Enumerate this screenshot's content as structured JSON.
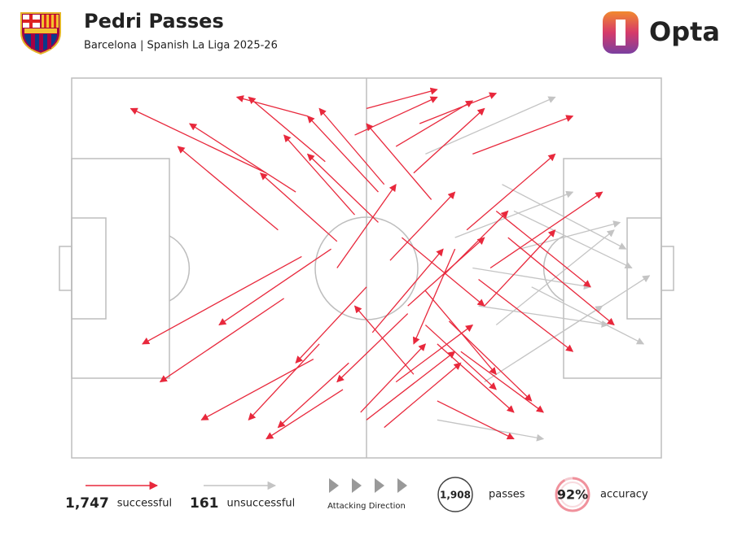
{
  "header": {
    "title": "Pedri Passes",
    "subtitle": "Barcelona | Spanish La Liga 2025-26",
    "brand": "Opta"
  },
  "chart_data": {
    "type": "passmap",
    "xlim": [
      0,
      100
    ],
    "ylim": [
      0,
      100
    ],
    "series": [
      {
        "name": "successful",
        "color": "#e8283c",
        "count": {
          "value": 1747,
          "label": "1,747"
        },
        "x": [
          45,
          52,
          60,
          38,
          55,
          48,
          65,
          70,
          42,
          58,
          50,
          62,
          35,
          68,
          54,
          47,
          72,
          40,
          57,
          63,
          49,
          53,
          66,
          44,
          59,
          51,
          36,
          61,
          56,
          46,
          71,
          43,
          64,
          50,
          58,
          39,
          67,
          53,
          48,
          60,
          55,
          41,
          69,
          52,
          62,
          45,
          57,
          33,
          74,
          50
        ],
        "y": [
          50,
          62,
          35,
          70,
          20,
          85,
          55,
          40,
          30,
          75,
          45,
          15,
          60,
          80,
          52,
          25,
          65,
          90,
          38,
          48,
          12,
          72,
          28,
          55,
          88,
          33,
          42,
          68,
          58,
          18,
          50,
          78,
          36,
          92,
          22,
          53,
          60,
          8,
          64,
          44,
          82,
          26,
          47,
          70,
          30,
          57,
          40,
          75,
          58,
          10
        ],
        "end_x": [
          55,
          40,
          72,
          20,
          68,
          62,
          58,
          82,
          30,
          70,
          38,
          75,
          18,
          85,
          65,
          35,
          88,
          28,
          45,
          74,
          60,
          42,
          80,
          25,
          72,
          63,
          15,
          50,
          70,
          33,
          90,
          30,
          78,
          62,
          48,
          12,
          82,
          66,
          36,
          72,
          68,
          22,
          85,
          40,
          75,
          32,
          70,
          10,
          92,
          65
        ],
        "end_y": [
          72,
          80,
          18,
          88,
          35,
          95,
          30,
          60,
          10,
          92,
          25,
          5,
          82,
          90,
          70,
          8,
          45,
          95,
          20,
          65,
          30,
          92,
          12,
          35,
          96,
          55,
          20,
          88,
          40,
          5,
          70,
          95,
          15,
          97,
          40,
          30,
          80,
          25,
          85,
          22,
          94,
          10,
          28,
          90,
          12,
          75,
          58,
          92,
          35,
          28
        ]
      },
      {
        "name": "unsuccessful",
        "color": "#c4c4c4",
        "count": {
          "value": 161,
          "label": "161"
        },
        "x": [
          68,
          72,
          75,
          60,
          70,
          78,
          65,
          73,
          80,
          62,
          76,
          69
        ],
        "y": [
          50,
          35,
          65,
          80,
          20,
          45,
          58,
          72,
          30,
          10,
          55,
          40
        ],
        "end_x": [
          88,
          92,
          95,
          82,
          90,
          97,
          85,
          94,
          98,
          80,
          93,
          91
        ],
        "end_y": [
          45,
          60,
          50,
          95,
          40,
          30,
          70,
          55,
          48,
          5,
          62,
          35
        ]
      }
    ],
    "direction_label": "Attacking Direction",
    "total": {
      "value": 1908,
      "label": "1,908"
    },
    "total_label": "passes",
    "accuracy": {
      "value": 92,
      "label": "92%"
    },
    "accuracy_label": "accuracy"
  }
}
